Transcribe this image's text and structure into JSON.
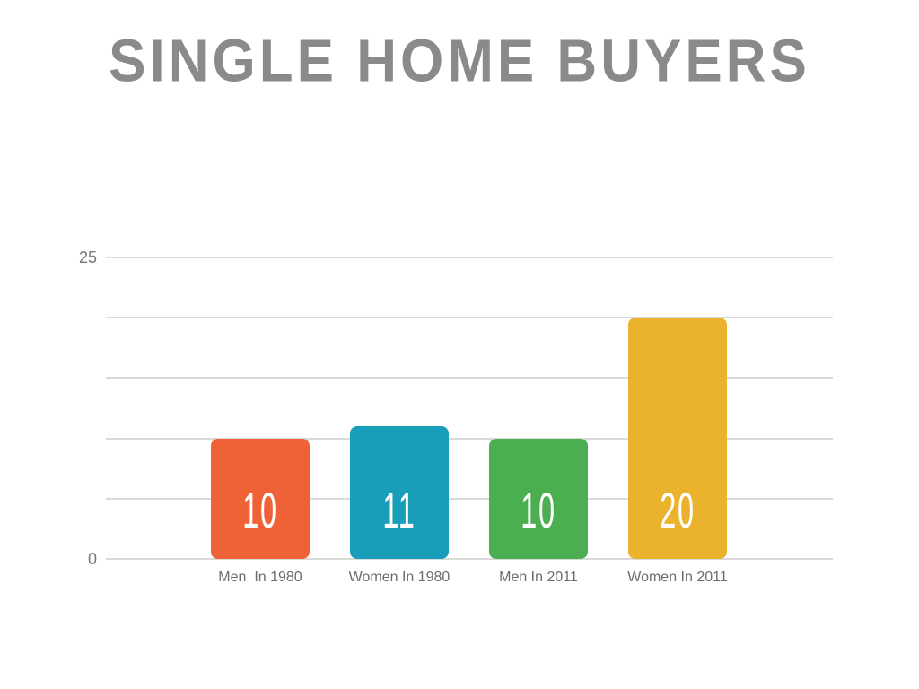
{
  "title": "SINGLE HOME BUYERS",
  "colors": {
    "background": "#ffffff",
    "title_text": "#8a8a8a",
    "gridline": "#dadada",
    "axis_tick_text": "#767676",
    "category_text": "#6b6b6b",
    "bar_value_text": "#ffffff"
  },
  "chart_data": {
    "type": "bar",
    "title": "SINGLE HOME BUYERS",
    "categories": [
      "Men  In 1980",
      "Women In 1980",
      "Men In 2011",
      "Women In 2011"
    ],
    "values": [
      10,
      11,
      10,
      20
    ],
    "value_labels": [
      "10",
      "11",
      "10",
      "20"
    ],
    "bar_colors": [
      "#ef6137",
      "#189eb8",
      "#4bae50",
      "#ebb32d"
    ],
    "xlabel": "",
    "ylabel": "",
    "ylim": [
      0,
      25
    ],
    "gridline_step": 5,
    "grid": true,
    "legend": false,
    "yticks_shown": [
      {
        "value": 0,
        "label": "0"
      },
      {
        "value": 25,
        "label": "25"
      }
    ]
  }
}
